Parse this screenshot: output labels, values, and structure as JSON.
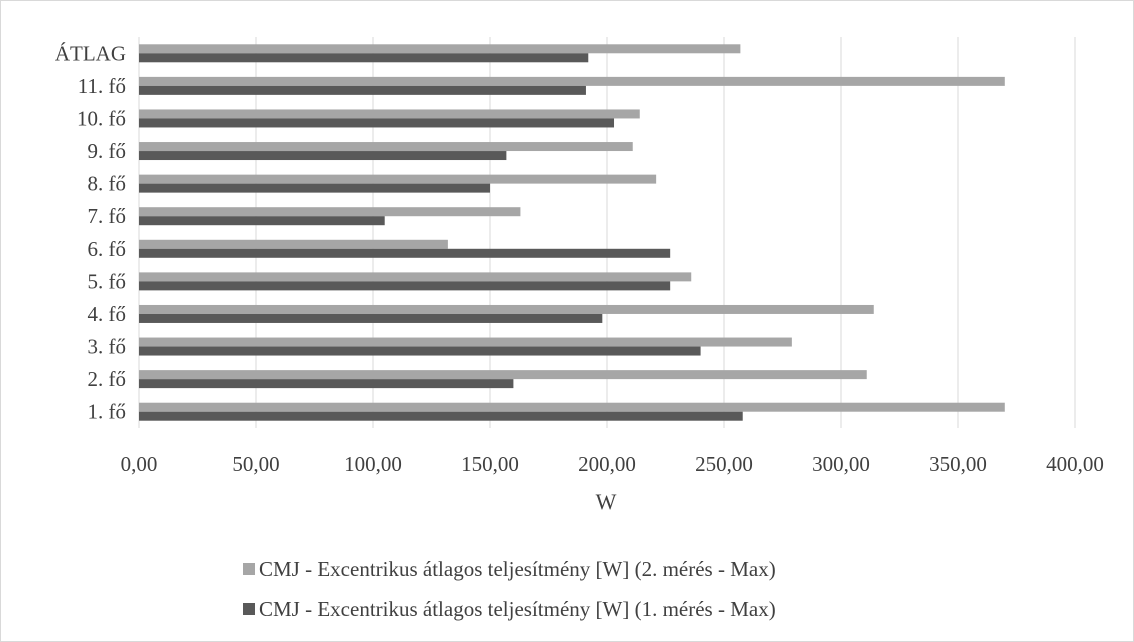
{
  "chart_data": {
    "type": "bar",
    "orientation": "horizontal",
    "categories": [
      "1. fő",
      "2. fő",
      "3. fő",
      "4. fő",
      "5. fő",
      "6. fő",
      "7. fő",
      "8. fő",
      "9. fő",
      "10. fő",
      "11. fő",
      "ÁTLAG"
    ],
    "series": [
      {
        "name": "CMJ - Excentrikus átlagos teljesítmény [W] (2. mérés - Max)",
        "color": "#a6a6a6",
        "values": [
          370,
          311,
          279,
          314,
          236,
          132,
          163,
          221,
          211,
          214,
          370,
          257
        ]
      },
      {
        "name": "CMJ - Excentrikus átlagos teljesítmény [W] (1. mérés - Max)",
        "color": "#595959",
        "values": [
          258,
          160,
          240,
          198,
          227,
          227,
          105,
          150,
          157,
          203,
          191,
          192
        ]
      }
    ],
    "xlabel": "W",
    "ylabel": "",
    "xlim": [
      0,
      400
    ],
    "x_ticks": [
      "0,00",
      "50,00",
      "100,00",
      "150,00",
      "200,00",
      "250,00",
      "300,00",
      "350,00",
      "400,00"
    ],
    "x_tick_values": [
      0,
      50,
      100,
      150,
      200,
      250,
      300,
      350,
      400
    ],
    "grid": true,
    "legend_position": "bottom"
  }
}
